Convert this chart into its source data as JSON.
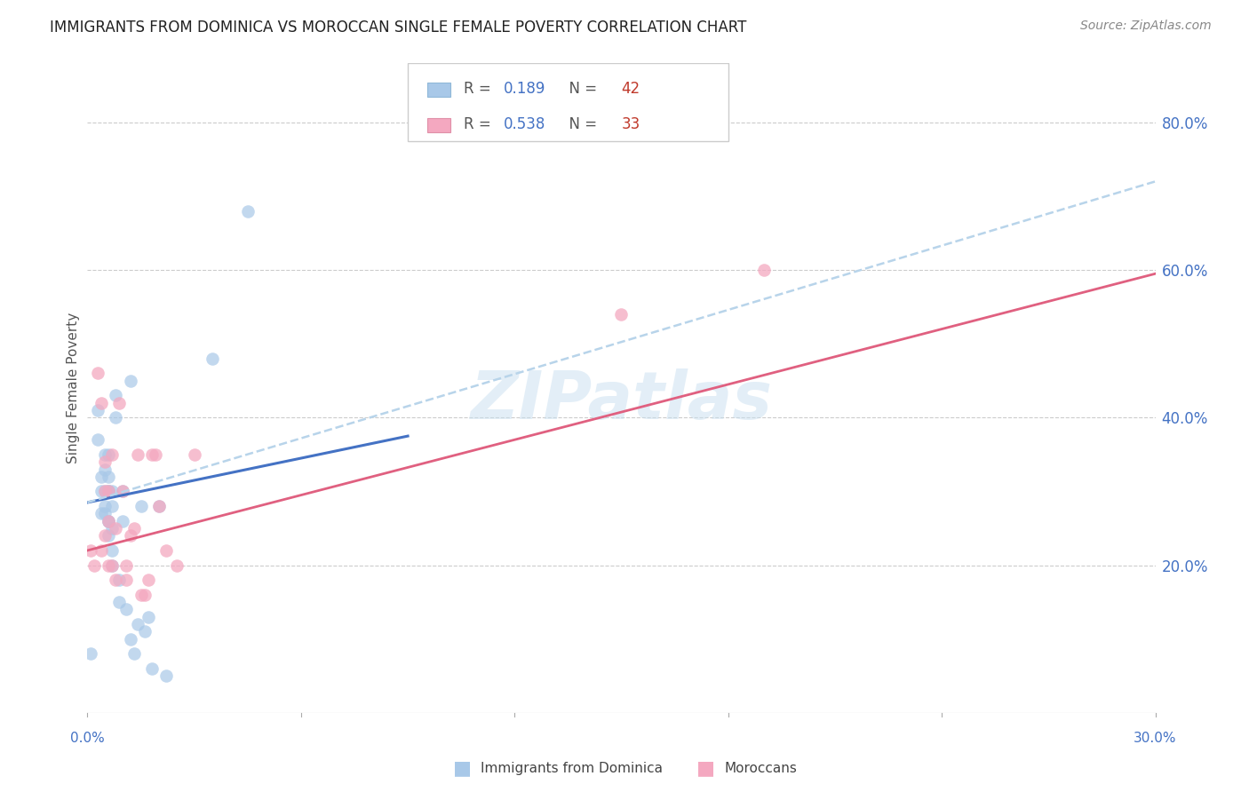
{
  "title": "IMMIGRANTS FROM DOMINICA VS MOROCCAN SINGLE FEMALE POVERTY CORRELATION CHART",
  "source": "Source: ZipAtlas.com",
  "ylabel": "Single Female Poverty",
  "ytick_labels": [
    "80.0%",
    "60.0%",
    "40.0%",
    "20.0%"
  ],
  "ytick_values": [
    0.8,
    0.6,
    0.4,
    0.2
  ],
  "xlim": [
    0.0,
    0.3
  ],
  "ylim": [
    0.0,
    0.88
  ],
  "blue_color": "#a8c8e8",
  "pink_color": "#f4a8c0",
  "blue_line_color": "#4472c4",
  "pink_line_color": "#e06080",
  "dashed_line_color": "#b8d4ea",
  "watermark": "ZIPatlas",
  "blue_scatter_x": [
    0.001,
    0.003,
    0.003,
    0.004,
    0.004,
    0.004,
    0.005,
    0.005,
    0.005,
    0.005,
    0.005,
    0.006,
    0.006,
    0.006,
    0.006,
    0.006,
    0.006,
    0.006,
    0.007,
    0.007,
    0.007,
    0.007,
    0.007,
    0.008,
    0.008,
    0.009,
    0.009,
    0.01,
    0.01,
    0.011,
    0.012,
    0.012,
    0.013,
    0.014,
    0.015,
    0.016,
    0.017,
    0.018,
    0.02,
    0.022,
    0.035,
    0.045
  ],
  "blue_scatter_y": [
    0.08,
    0.37,
    0.41,
    0.27,
    0.3,
    0.32,
    0.35,
    0.27,
    0.33,
    0.28,
    0.3,
    0.3,
    0.32,
    0.26,
    0.35,
    0.3,
    0.26,
    0.24,
    0.3,
    0.28,
    0.25,
    0.22,
    0.2,
    0.4,
    0.43,
    0.18,
    0.15,
    0.26,
    0.3,
    0.14,
    0.1,
    0.45,
    0.08,
    0.12,
    0.28,
    0.11,
    0.13,
    0.06,
    0.28,
    0.05,
    0.48,
    0.68
  ],
  "pink_scatter_x": [
    0.001,
    0.002,
    0.003,
    0.004,
    0.004,
    0.005,
    0.005,
    0.005,
    0.006,
    0.006,
    0.006,
    0.007,
    0.007,
    0.008,
    0.008,
    0.009,
    0.01,
    0.011,
    0.011,
    0.012,
    0.013,
    0.014,
    0.015,
    0.016,
    0.017,
    0.018,
    0.019,
    0.02,
    0.022,
    0.025,
    0.03,
    0.15,
    0.19
  ],
  "pink_scatter_y": [
    0.22,
    0.2,
    0.46,
    0.22,
    0.42,
    0.3,
    0.34,
    0.24,
    0.2,
    0.26,
    0.3,
    0.35,
    0.2,
    0.18,
    0.25,
    0.42,
    0.3,
    0.2,
    0.18,
    0.24,
    0.25,
    0.35,
    0.16,
    0.16,
    0.18,
    0.35,
    0.35,
    0.28,
    0.22,
    0.2,
    0.35,
    0.54,
    0.6
  ],
  "blue_line_x": [
    0.0,
    0.09
  ],
  "blue_line_y": [
    0.285,
    0.375
  ],
  "pink_line_x": [
    0.0,
    0.3
  ],
  "pink_line_y": [
    0.22,
    0.595
  ],
  "dashed_line_x": [
    0.0,
    0.3
  ],
  "dashed_line_y": [
    0.285,
    0.72
  ]
}
